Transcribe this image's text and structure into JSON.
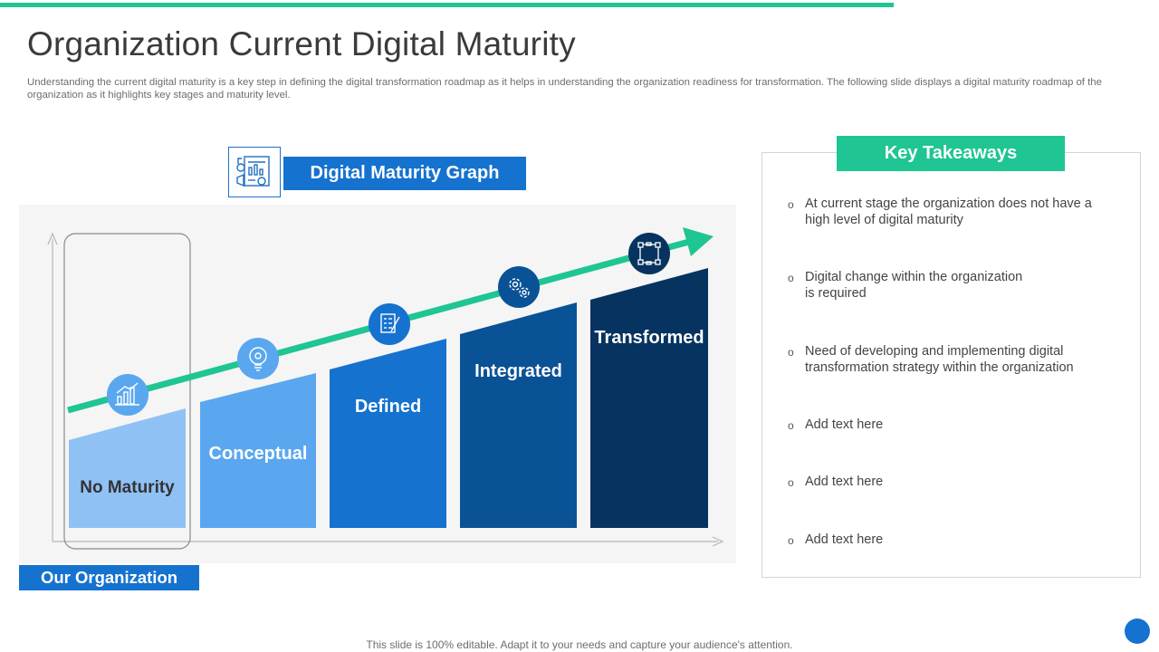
{
  "slide": {
    "title": "Organization Current Digital Maturity",
    "subtitle": "Understanding the current digital maturity is a key step in defining the digital transformation roadmap as it helps in understanding the organization readiness for transformation. The following slide displays a digital maturity roadmap of the organization as it highlights key stages and maturity level.",
    "footer": "This slide is 100% editable. Adapt it to your needs and capture your audience's attention."
  },
  "graph": {
    "heading": "Digital Maturity Graph",
    "heading_icon": "dashboard-report-icon",
    "organization_label": "Our Organization",
    "stages": [
      {
        "label": "No Maturity",
        "icon": "bar-chart-growth-icon",
        "color": "#8fc1f5",
        "text_color": "#333333"
      },
      {
        "label": "Conceptual",
        "icon": "lightbulb-idea-icon",
        "color": "#5aa7f0",
        "text_color": "#ffffff"
      },
      {
        "label": "Defined",
        "icon": "checklist-icon",
        "color": "#1572cf",
        "text_color": "#ffffff"
      },
      {
        "label": "Integrated",
        "icon": "gears-icon",
        "color": "#0a5296",
        "text_color": "#ffffff"
      },
      {
        "label": "Transformed",
        "icon": "network-nodes-icon",
        "color": "#06335f",
        "text_color": "#ffffff"
      }
    ],
    "arrow_color": "#1fc592"
  },
  "takeaways": {
    "heading": "Key Takeaways",
    "items": [
      "At current stage the organization does not have a\nhigh level of digital maturity",
      "Digital change within the organization\n is required",
      "Need of developing and implementing digital\ntransformation strategy within the organization",
      "Add text here",
      "Add text here",
      "Add text here"
    ]
  },
  "colors": {
    "accent_green": "#1fc592",
    "accent_blue": "#1572cf"
  }
}
